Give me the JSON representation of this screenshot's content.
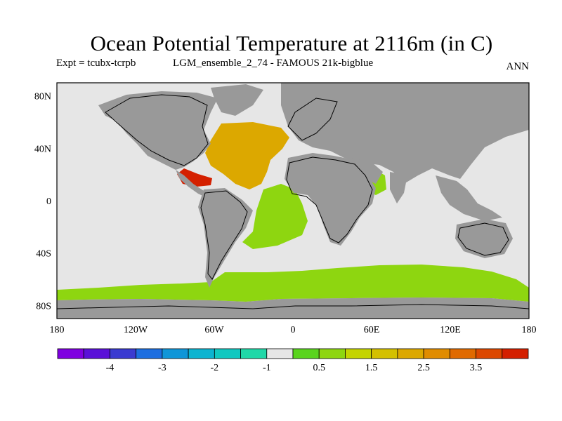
{
  "figure": {
    "title": "Ocean Potential Temperature at 2116m (in C)",
    "expt_label": "Expt = tcubx-tcrpb",
    "model_label": "LGM_ensemble_2_74 - FAMOUS 21k-bigblue",
    "period": "ANN"
  },
  "chart_data": {
    "type": "heatmap",
    "projection": "cylindrical-equidistant",
    "lon_range": [
      -180,
      180
    ],
    "lat_range": [
      -90,
      90
    ],
    "x_ticks": [
      {
        "value": -180,
        "label": "180"
      },
      {
        "value": -120,
        "label": "120W"
      },
      {
        "value": -60,
        "label": "60W"
      },
      {
        "value": 0,
        "label": "0"
      },
      {
        "value": 60,
        "label": "60E"
      },
      {
        "value": 120,
        "label": "120E"
      },
      {
        "value": 180,
        "label": "180"
      }
    ],
    "y_ticks": [
      {
        "value": 80,
        "label": "80N"
      },
      {
        "value": 40,
        "label": "40N"
      },
      {
        "value": 0,
        "label": "0"
      },
      {
        "value": -40,
        "label": "40S"
      },
      {
        "value": -80,
        "label": "80S"
      }
    ],
    "colorbar": {
      "levels": [
        -4.5,
        -4,
        -3.5,
        -3,
        -2.5,
        -2,
        -1.5,
        -1,
        -0.5,
        0.5,
        1,
        1.5,
        2,
        2.5,
        3,
        3.5,
        4
      ],
      "colors": [
        "#7f00e0",
        "#5a10d8",
        "#3a3ad0",
        "#1c6ee0",
        "#0f96d8",
        "#0cb4d0",
        "#10c8c0",
        "#20d8a8",
        "#e6e6e6",
        "#5ad41e",
        "#8ed610",
        "#c4d400",
        "#d4c000",
        "#dca800",
        "#e08c00",
        "#e06a00",
        "#dc4800",
        "#d42000"
      ],
      "labeled_ticks": [
        {
          "value": -4,
          "label": "-4"
        },
        {
          "value": -3,
          "label": "-3"
        },
        {
          "value": -2,
          "label": "-2"
        },
        {
          "value": -1,
          "label": "-1"
        },
        {
          "value": 0.5,
          "label": "0.5"
        },
        {
          "value": 1.5,
          "label": "1.5"
        },
        {
          "value": 2.5,
          "label": "2.5"
        },
        {
          "value": 3.5,
          "label": "3.5"
        }
      ]
    },
    "regions": [
      {
        "name": "north-atlantic-core",
        "value": 2.2
      },
      {
        "name": "gulf-of-mexico-caribbean",
        "value": 4.3
      },
      {
        "name": "south-atlantic",
        "value": 0.8
      },
      {
        "name": "southern-ocean-band",
        "value": 0.8
      },
      {
        "name": "arabian-sea",
        "value": 0.8
      }
    ],
    "colors": {
      "land": "#999999",
      "neutral_ocean": "#e6e6e6",
      "coastline": "#000000"
    }
  }
}
